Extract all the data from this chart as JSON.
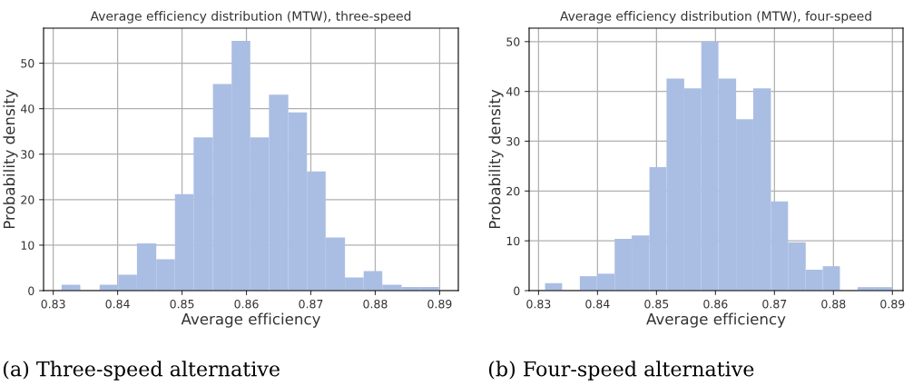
{
  "chart_data": [
    {
      "type": "histogram",
      "title": "Average efficiency distribution (MTW), three-speed",
      "xlabel": "Average efficiency",
      "ylabel": "Probability density",
      "color": "#aabee4",
      "bins": [
        0.8313,
        0.8342,
        0.8372,
        0.8401,
        0.843,
        0.846,
        0.8489,
        0.8518,
        0.8548,
        0.8577,
        0.8606,
        0.8635,
        0.8665,
        0.8694,
        0.8723,
        0.8753,
        0.8782,
        0.8811,
        0.8841,
        0.887,
        0.8899
      ],
      "values": [
        1.3,
        0,
        1.3,
        3.5,
        10.4,
        6.9,
        21.2,
        33.7,
        45.4,
        54.9,
        33.7,
        43.1,
        39.2,
        26.2,
        11.7,
        2.9,
        4.3,
        1.3,
        0.8,
        0.8
      ],
      "xlim": [
        0.8285,
        0.8929
      ],
      "ylim": [
        0,
        57.7
      ],
      "xticks": [
        0.83,
        0.84,
        0.85,
        0.86,
        0.87,
        0.88,
        0.89
      ],
      "yticks": [
        0,
        10,
        20,
        30,
        40,
        50
      ],
      "grid": true,
      "annotations": [
        "(a) Three-speed alternative"
      ]
    },
    {
      "type": "histogram",
      "title": "Average efficiency distribution (MTW), four-speed",
      "xlabel": "Average efficiency",
      "ylabel": "Probability density",
      "color": "#aabee4",
      "bins": [
        0.8311,
        0.834,
        0.837,
        0.8399,
        0.8429,
        0.8458,
        0.8488,
        0.8517,
        0.8547,
        0.8576,
        0.8605,
        0.8635,
        0.8664,
        0.8694,
        0.8723,
        0.8753,
        0.8782,
        0.8811,
        0.8841,
        0.887,
        0.89
      ],
      "values": [
        1.5,
        0,
        2.9,
        3.4,
        10.4,
        11.1,
        24.8,
        42.6,
        40.6,
        50,
        42.6,
        34.4,
        40.6,
        17.9,
        9.7,
        4.2,
        4.9,
        0,
        0.7,
        0.7
      ],
      "xlim": [
        0.8284,
        0.8918
      ],
      "ylim": [
        0,
        52.7
      ],
      "xticks": [
        0.83,
        0.84,
        0.85,
        0.86,
        0.87,
        0.88,
        0.89
      ],
      "yticks": [
        0,
        10,
        20,
        30,
        40,
        50
      ],
      "grid": true,
      "annotations": [
        "(b) Four-speed alternative"
      ]
    }
  ]
}
